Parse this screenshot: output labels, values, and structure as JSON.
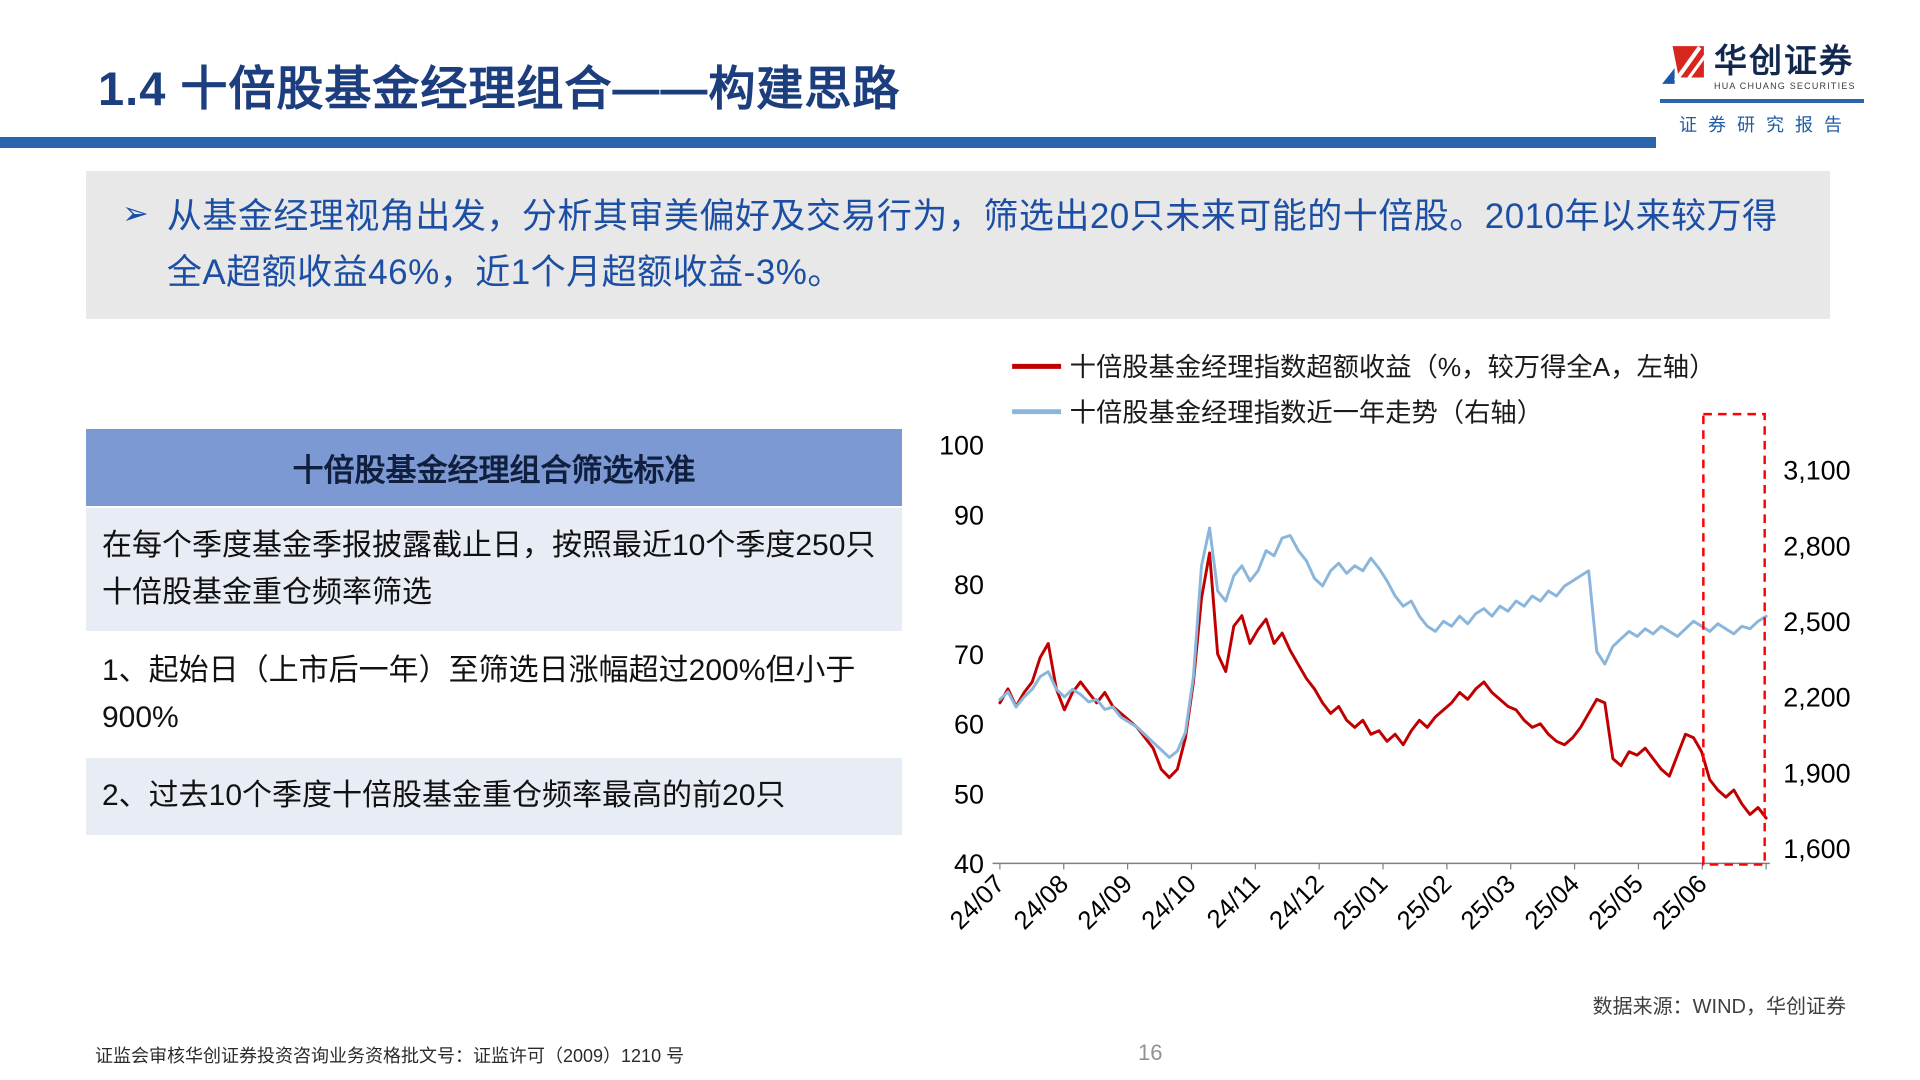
{
  "header": {
    "title": "1.4 十倍股基金经理组合——构建思路",
    "brand": {
      "name": "华创证券",
      "name_en": "HUA CHUANG SECURITIES",
      "tagline": "证 券 研 究 报 告"
    }
  },
  "summary": {
    "marker": "➢",
    "text": "从基金经理视角出发，分析其审美偏好及交易行为，筛选出20只未来可能的十倍股。2010年以来较万得全A超额收益46%，近1个月超额收益-3%。"
  },
  "criteria_table": {
    "header": "十倍股基金经理组合筛选标准",
    "rows": [
      "在每个季度基金季报披露截止日，按照最近10个季度250只十倍股基金重仓频率筛选",
      "1、起始日（上市后一年）至筛选日涨幅超过200%但小于900%",
      "2、过去10个季度十倍股基金重仓频率最高的前20只"
    ]
  },
  "chart_data": {
    "type": "line",
    "title": "",
    "legend_position": "top-left",
    "x_labels": [
      "24/07",
      "24/08",
      "24/09",
      "24/10",
      "24/11",
      "24/12",
      "25/01",
      "25/02",
      "25/03",
      "25/04",
      "25/05",
      "25/06"
    ],
    "left_axis": {
      "min": 40,
      "max": 100,
      "ticks": [
        100,
        90,
        80,
        70,
        60,
        50,
        40
      ]
    },
    "right_axis": {
      "min": 1540,
      "max": 3200,
      "ticks": [
        "3,100",
        "2,800",
        "2,500",
        "2,200",
        "1,900",
        "1,600"
      ]
    },
    "highlight_box": {
      "from_x": 0.918,
      "to_x": 0.998,
      "color": "#FF0000"
    },
    "series": [
      {
        "name": "十倍股基金经理指数超额收益（%，较万得全A，左轴）",
        "axis": "left",
        "color": "#C00000",
        "values": [
          63,
          65,
          62.5,
          64.5,
          66,
          69.5,
          71.5,
          65,
          62,
          64.5,
          66,
          64.5,
          63,
          64.5,
          62.5,
          61.5,
          60.5,
          59.5,
          58,
          56.5,
          53.5,
          52.3,
          53.5,
          58,
          66,
          78,
          84.5,
          70,
          67.5,
          74,
          75.5,
          71.5,
          73.5,
          75,
          71.5,
          73,
          70.5,
          68.5,
          66.5,
          65,
          63,
          61.5,
          62.5,
          60.5,
          59.5,
          60.5,
          58.5,
          59,
          57.5,
          58.5,
          57,
          59,
          60.5,
          59.5,
          61,
          62,
          63,
          64.5,
          63.5,
          65,
          66,
          64.5,
          63.5,
          62.5,
          62,
          60.5,
          59.5,
          60,
          58.5,
          57.5,
          57,
          58,
          59.5,
          61.5,
          63.5,
          63,
          55,
          54,
          56,
          55.5,
          56.5,
          55,
          53.5,
          52.5,
          55.5,
          58.5,
          58,
          56,
          52,
          50.5,
          49.5,
          50.5,
          48.5,
          47,
          48,
          46.5
        ]
      },
      {
        "name": "十倍股基金经理指数近一年走势（右轴）",
        "axis": "right",
        "color": "#8AB6DB",
        "values": [
          2190,
          2220,
          2160,
          2200,
          2230,
          2280,
          2300,
          2230,
          2200,
          2230,
          2210,
          2180,
          2190,
          2150,
          2160,
          2120,
          2100,
          2080,
          2050,
          2020,
          1990,
          1960,
          1985,
          2060,
          2280,
          2720,
          2870,
          2620,
          2580,
          2680,
          2720,
          2660,
          2700,
          2780,
          2760,
          2830,
          2840,
          2780,
          2740,
          2670,
          2640,
          2700,
          2730,
          2690,
          2720,
          2700,
          2750,
          2710,
          2660,
          2600,
          2560,
          2580,
          2520,
          2480,
          2460,
          2500,
          2480,
          2520,
          2490,
          2530,
          2550,
          2520,
          2560,
          2540,
          2580,
          2560,
          2600,
          2580,
          2620,
          2600,
          2640,
          2660,
          2680,
          2700,
          2380,
          2330,
          2400,
          2430,
          2460,
          2440,
          2470,
          2450,
          2480,
          2460,
          2440,
          2470,
          2500,
          2480,
          2460,
          2490,
          2470,
          2450,
          2480,
          2470,
          2500,
          2520
        ]
      }
    ]
  },
  "footer": {
    "source": "数据来源：WIND，华创证券",
    "compliance": "证监会审核华创证券投资咨询业务资格批文号：证监许可（2009）1210 号",
    "page": "16"
  }
}
